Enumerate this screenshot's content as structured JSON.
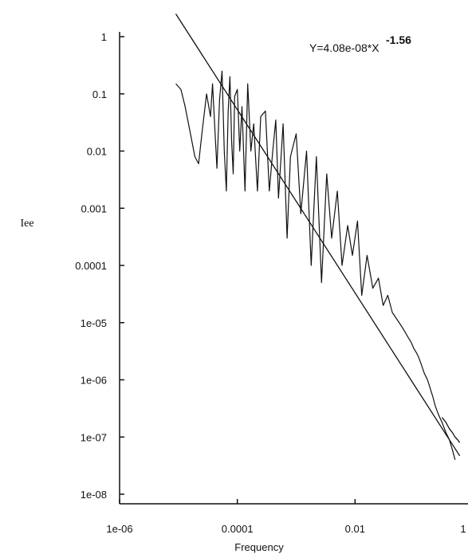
{
  "chart_data": {
    "type": "line",
    "title": "",
    "xlabel": "Frequency",
    "ylabel": "Iee",
    "x_scale": "log",
    "y_scale": "log",
    "xlim": [
      1e-06,
      1
    ],
    "ylim": [
      1e-08,
      1
    ],
    "grid": false,
    "x_ticks": [
      {
        "value": 1e-06,
        "label": "1e-06"
      },
      {
        "value": 0.0001,
        "label": "0.0001"
      },
      {
        "value": 0.01,
        "label": "0.01"
      },
      {
        "value": 1,
        "label": "1"
      }
    ],
    "y_ticks": [
      {
        "value": 1,
        "label": "1"
      },
      {
        "value": 0.1,
        "label": "0.1"
      },
      {
        "value": 0.01,
        "label": "0.01"
      },
      {
        "value": 0.001,
        "label": "0.001"
      },
      {
        "value": 0.0001,
        "label": "0.0001"
      },
      {
        "value": 1e-05,
        "label": "1e-05"
      },
      {
        "value": 1e-06,
        "label": "1e-06"
      },
      {
        "value": 1e-07,
        "label": "1e-07"
      },
      {
        "value": 1e-08,
        "label": "1e-08"
      }
    ],
    "annotation": {
      "text": "Y=4.08e-08*X",
      "exponent": "-1.56",
      "position": "top-right"
    },
    "series": [
      {
        "style": "spectrum",
        "x": [
          9e-06,
          1.1e-05,
          1.3e-05,
          1.6e-05,
          1.9e-05,
          2.2e-05,
          2.5e-05,
          3e-05,
          3.5e-05,
          3.8e-05,
          4.2e-05,
          4.5e-05,
          5e-05,
          5.5e-05,
          6e-05,
          6.5e-05,
          7e-05,
          7.5e-05,
          8e-05,
          8.5e-05,
          9e-05,
          0.0001,
          0.00011,
          0.00012,
          0.000135,
          0.00015,
          0.00017,
          0.00019,
          0.00022,
          0.00025,
          0.0003,
          0.00035,
          0.0004,
          0.00045,
          0.0005,
          0.0006,
          0.0007,
          0.0008,
          0.001,
          0.0012,
          0.0015,
          0.0018,
          0.0022,
          0.0027,
          0.0033,
          0.004,
          0.005,
          0.006,
          0.0075,
          0.009,
          0.011,
          0.013,
          0.016,
          0.02,
          0.025,
          0.03,
          0.036,
          0.043,
          0.05,
          0.06,
          0.07,
          0.08,
          0.09,
          0.1,
          0.11,
          0.12,
          0.13,
          0.14,
          0.15,
          0.17,
          0.19,
          0.21,
          0.23,
          0.26,
          0.3,
          0.35,
          0.4,
          0.45,
          0.5
        ],
        "y": [
          0.15,
          0.12,
          0.06,
          0.02,
          0.008,
          0.006,
          0.02,
          0.1,
          0.04,
          0.15,
          0.02,
          0.005,
          0.08,
          0.25,
          0.01,
          0.002,
          0.05,
          0.2,
          0.015,
          0.004,
          0.09,
          0.12,
          0.01,
          0.06,
          0.002,
          0.15,
          0.01,
          0.03,
          0.002,
          0.04,
          0.05,
          0.002,
          0.01,
          0.035,
          0.0015,
          0.03,
          0.0003,
          0.008,
          0.02,
          0.0008,
          0.01,
          0.0001,
          0.008,
          5e-05,
          0.004,
          0.0003,
          0.002,
          0.0001,
          0.0005,
          0.00015,
          0.0006,
          3e-05,
          0.00015,
          4e-05,
          6e-05,
          2e-05,
          3e-05,
          1.5e-05,
          1.2e-05,
          9e-06,
          7e-06,
          5.5e-06,
          4.5e-06,
          3.5e-06,
          3e-06,
          2.5e-06,
          2e-06,
          1.6e-06,
          1.3e-06,
          1e-06,
          7e-07,
          5e-07,
          3.5e-07,
          2.5e-07,
          1.8e-07,
          1.2e-07,
          9e-08,
          6e-08,
          4e-08
        ]
      },
      {
        "style": "smooth",
        "x": [
          0.3,
          0.35,
          0.4,
          0.45,
          0.5,
          0.55,
          0.6
        ],
        "y": [
          2.2e-07,
          1.8e-07,
          1.4e-07,
          1.2e-07,
          1e-07,
          9e-08,
          8e-08
        ]
      },
      {
        "style": "fit",
        "x": [
          9e-06,
          0.6
        ],
        "y": [
          2.5,
          4.7e-08
        ]
      }
    ]
  }
}
